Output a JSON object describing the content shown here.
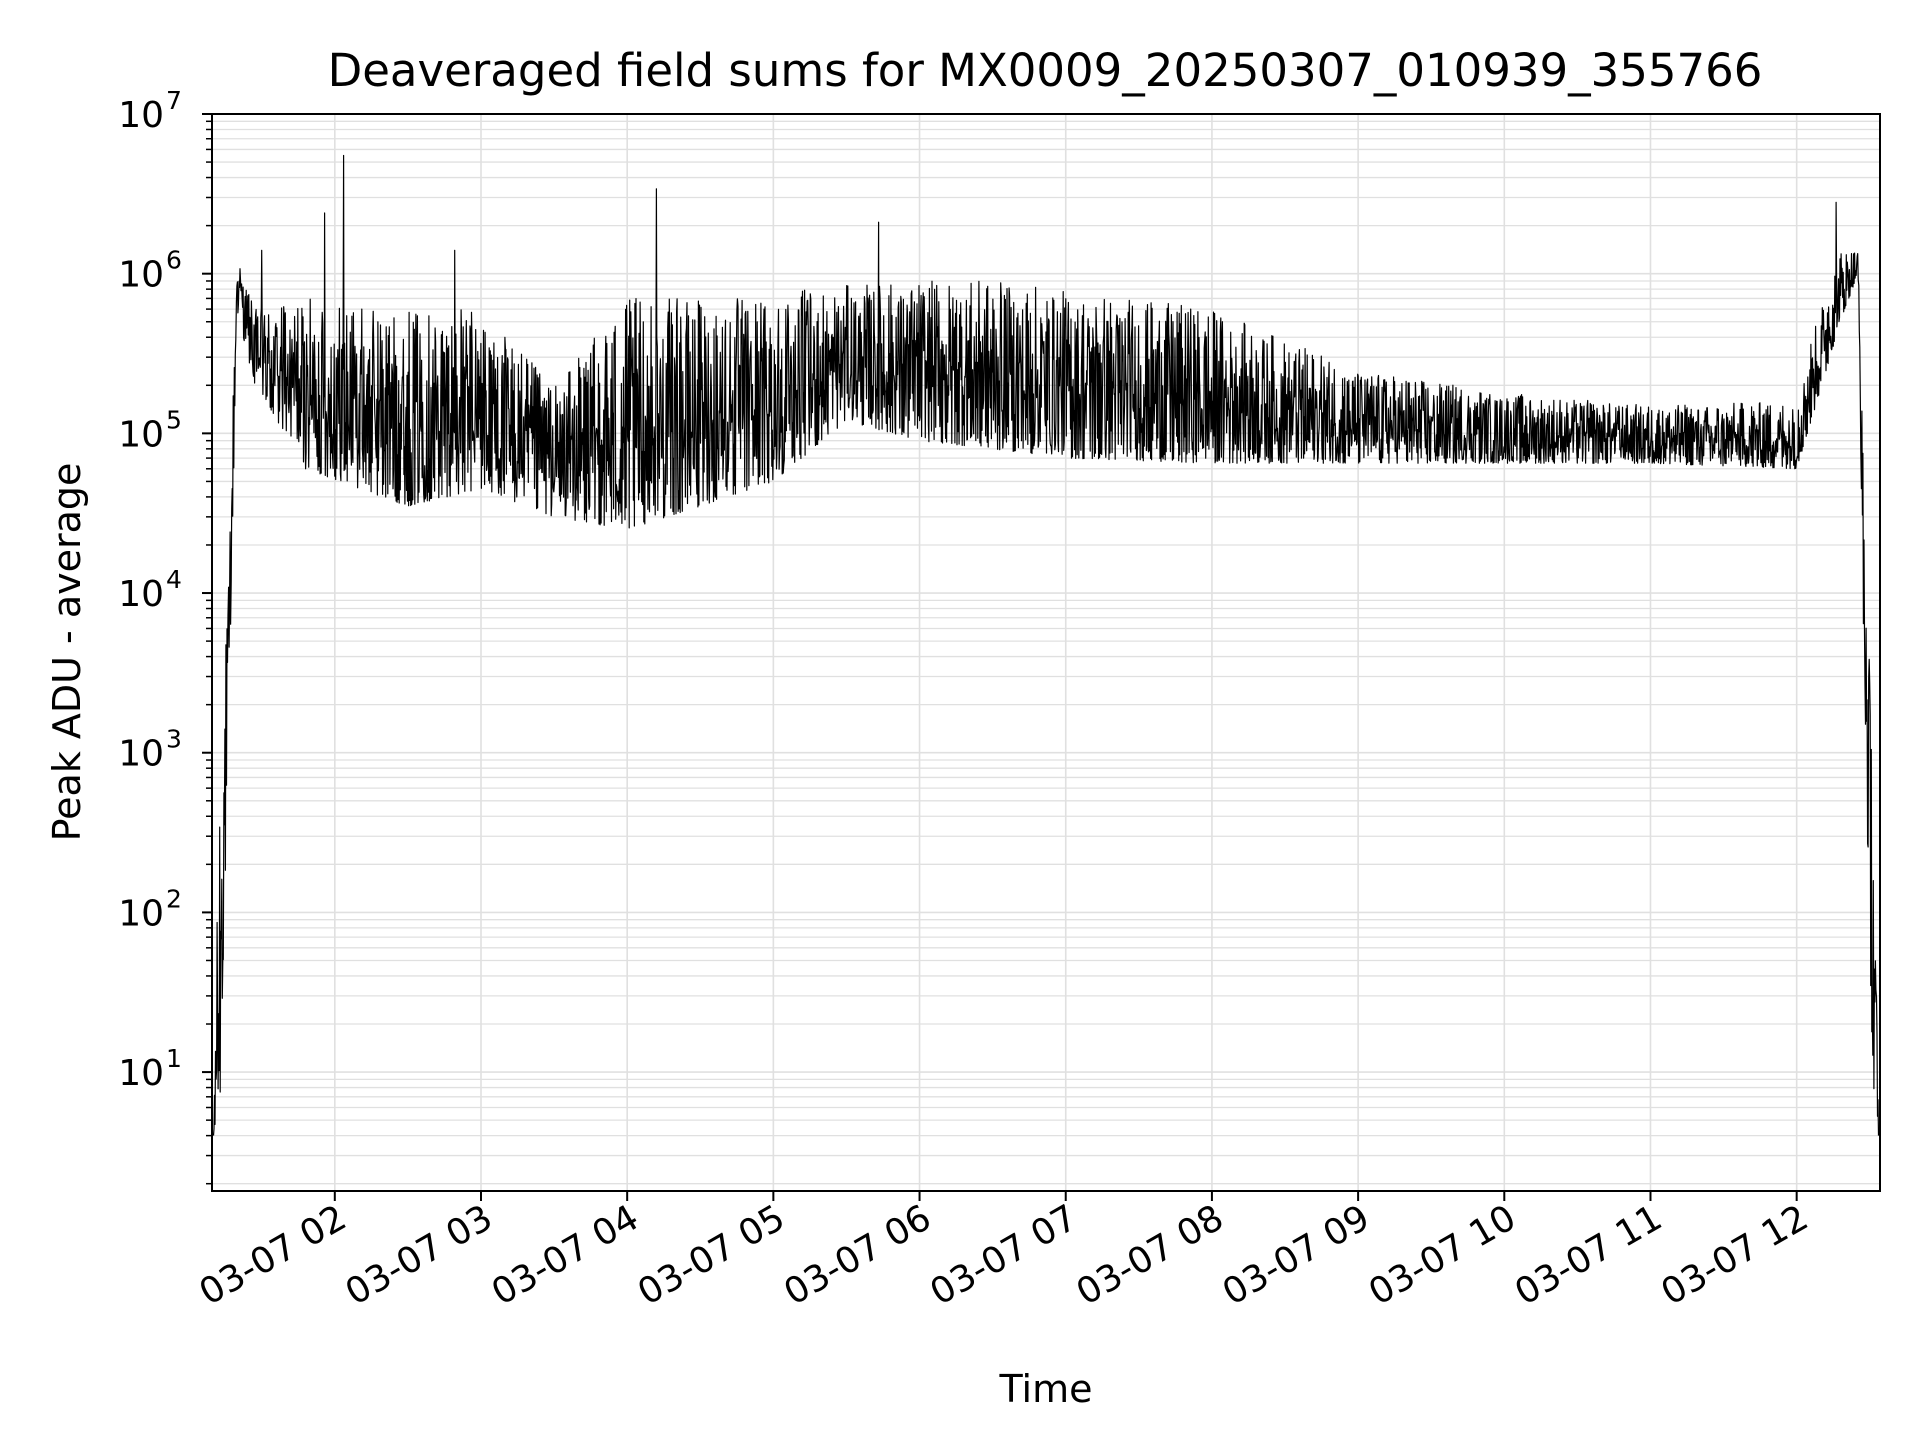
{
  "chart_data": {
    "type": "line",
    "title": "Deaveraged field sums for MX0009_20250307_010939_355766",
    "xlabel": "Time",
    "ylabel": "Peak ADU - average",
    "x_range": [
      "2025-03-07T01:09",
      "2025-03-07T12:32"
    ],
    "xlim_hours": [
      1.16,
      12.57
    ],
    "ylim": [
      1.8,
      10000000
    ],
    "yscale": "log",
    "grid": true,
    "legend": "none",
    "colors": {
      "line": "#000000",
      "grid": "#e0e0e0",
      "axes": "#000000",
      "background": "#ffffff"
    },
    "x_ticks": [
      {
        "hour": 2,
        "label": "03-07 02"
      },
      {
        "hour": 3,
        "label": "03-07 03"
      },
      {
        "hour": 4,
        "label": "03-07 04"
      },
      {
        "hour": 5,
        "label": "03-07 05"
      },
      {
        "hour": 6,
        "label": "03-07 06"
      },
      {
        "hour": 7,
        "label": "03-07 07"
      },
      {
        "hour": 8,
        "label": "03-07 08"
      },
      {
        "hour": 9,
        "label": "03-07 09"
      },
      {
        "hour": 10,
        "label": "03-07 10"
      },
      {
        "hour": 11,
        "label": "03-07 11"
      },
      {
        "hour": 12,
        "label": "03-07 12"
      }
    ],
    "y_ticks": [
      {
        "value": 10,
        "base": "10",
        "exp": "1"
      },
      {
        "value": 100,
        "base": "10",
        "exp": "2"
      },
      {
        "value": 1000,
        "base": "10",
        "exp": "3"
      },
      {
        "value": 10000,
        "base": "10",
        "exp": "4"
      },
      {
        "value": 100000,
        "base": "10",
        "exp": "5"
      },
      {
        "value": 1000000,
        "base": "10",
        "exp": "6"
      },
      {
        "value": 10000000,
        "base": "10",
        "exp": "7"
      }
    ],
    "series": [
      {
        "envelope": [
          {
            "hour": 1.17,
            "low": 4,
            "high": 4
          },
          {
            "hour": 1.21,
            "low": 4,
            "high": 700
          },
          {
            "hour": 1.27,
            "low": 900,
            "high": 10000
          },
          {
            "hour": 1.33,
            "low": 600000,
            "high": 1500000
          },
          {
            "hour": 1.45,
            "low": 200000,
            "high": 600000
          },
          {
            "hour": 1.8,
            "low": 60000,
            "high": 700000
          },
          {
            "hour": 2.5,
            "low": 35000,
            "high": 600000
          },
          {
            "hour": 3.0,
            "low": 45000,
            "high": 600000
          },
          {
            "hour": 3.5,
            "low": 30000,
            "high": 200000
          },
          {
            "hour": 4.0,
            "low": 25000,
            "high": 700000
          },
          {
            "hour": 4.5,
            "low": 35000,
            "high": 700000
          },
          {
            "hour": 5.0,
            "low": 50000,
            "high": 750000
          },
          {
            "hour": 5.5,
            "low": 120000,
            "high": 850000
          },
          {
            "hour": 6.0,
            "low": 90000,
            "high": 900000
          },
          {
            "hour": 6.5,
            "low": 80000,
            "high": 900000
          },
          {
            "hour": 7.0,
            "low": 70000,
            "high": 800000
          },
          {
            "hour": 8.0,
            "low": 65000,
            "high": 600000
          },
          {
            "hour": 9.0,
            "low": 65000,
            "high": 250000
          },
          {
            "hour": 10.0,
            "low": 65000,
            "high": 180000
          },
          {
            "hour": 11.0,
            "low": 65000,
            "high": 150000
          },
          {
            "hour": 12.0,
            "low": 60000,
            "high": 160000
          },
          {
            "hour": 12.1,
            "low": 120000,
            "high": 400000
          },
          {
            "hour": 12.3,
            "low": 500000,
            "high": 1400000
          },
          {
            "hour": 12.42,
            "low": 1000000,
            "high": 1400000
          },
          {
            "hour": 12.47,
            "low": 1000,
            "high": 20000
          },
          {
            "hour": 12.53,
            "low": 4,
            "high": 600
          },
          {
            "hour": 12.56,
            "low": 4,
            "high": 4
          }
        ],
        "spikes": [
          {
            "hour": 1.5,
            "value": 1400000
          },
          {
            "hour": 1.93,
            "value": 2400000
          },
          {
            "hour": 2.06,
            "value": 5500000
          },
          {
            "hour": 2.82,
            "value": 1400000
          },
          {
            "hour": 4.2,
            "value": 3400000
          },
          {
            "hour": 5.72,
            "value": 2100000
          },
          {
            "hour": 12.27,
            "value": 2800000
          }
        ]
      }
    ]
  }
}
